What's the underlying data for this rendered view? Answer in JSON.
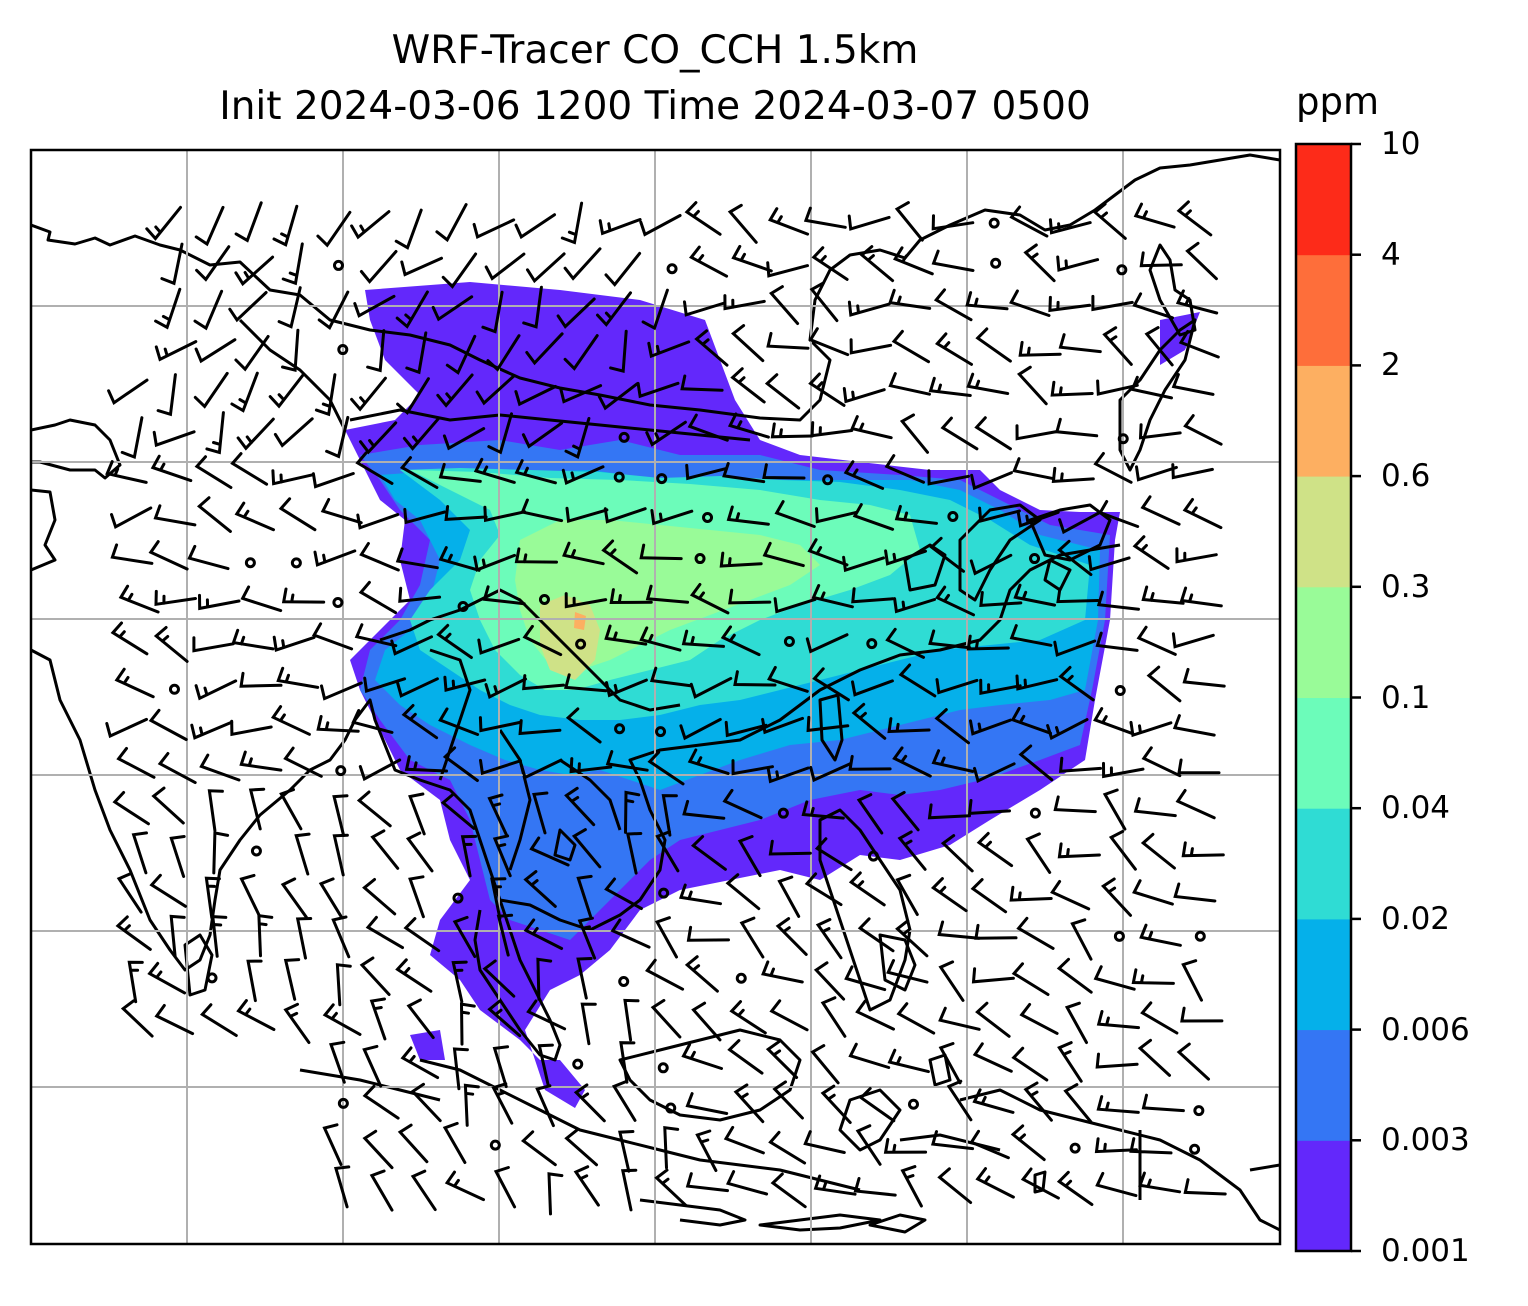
{
  "title": {
    "line1": "WRF-Tracer CO_CCH 1.5km",
    "line2": "Init 2024-03-06 1200 Time 2024-03-07 0500"
  },
  "colorbar": {
    "unit": "ppm",
    "levels": [
      "0.001",
      "0.003",
      "0.006",
      "0.02",
      "0.04",
      "0.1",
      "0.3",
      "0.6",
      "2",
      "4",
      "10"
    ],
    "colors": [
      "#6328fb",
      "#3476f4",
      "#05b0ea",
      "#2fdcd4",
      "#6cfcba",
      "#99fb98",
      "#cfe287",
      "#fdaf61",
      "#fe6e3a",
      "#fd2b19"
    ]
  },
  "map": {
    "type": "filled contour with wind barbs",
    "field": "CO tracer concentration",
    "gridlines": true
  }
}
